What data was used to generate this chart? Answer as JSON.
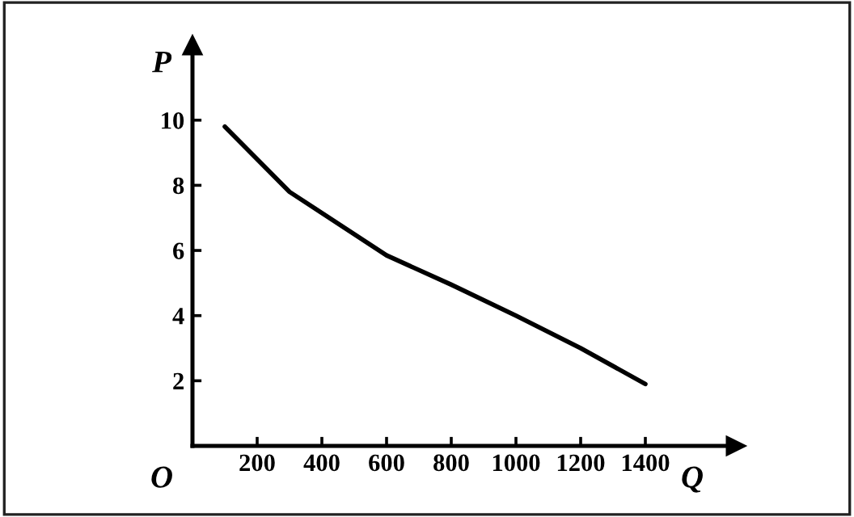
{
  "chart_data": {
    "type": "line",
    "xlabel": "Q",
    "ylabel": "P",
    "annotations": [
      "O"
    ],
    "x": [
      100,
      300,
      600,
      800,
      1000,
      1200,
      1400
    ],
    "series": [
      {
        "color": "#000000",
        "values": [
          9.8,
          7.8,
          5.85,
          4.95,
          4.0,
          3.0,
          1.9
        ]
      }
    ],
    "xlim": [
      0,
      1680
    ],
    "ylim": [
      0,
      12.3
    ],
    "xticks": [
      200,
      400,
      600,
      800,
      1000,
      1200,
      1400
    ],
    "yticks": [
      2,
      4,
      6,
      8,
      10
    ],
    "grid": false,
    "legend": false,
    "marker": "none",
    "line_style": "solid"
  }
}
